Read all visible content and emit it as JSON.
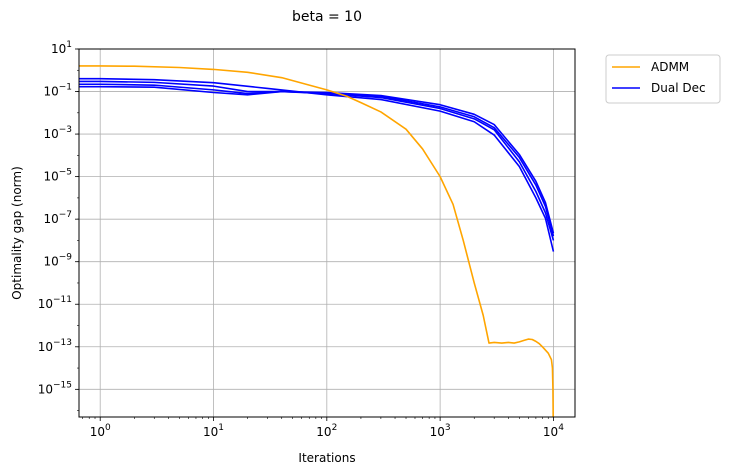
{
  "chart_data": {
    "type": "line",
    "title": "beta = 10",
    "xlabel": "Iterations",
    "ylabel": "Optimality gap (norm)",
    "xscale": "log",
    "yscale": "log",
    "xlim": [
      0.65,
      15500
    ],
    "ylim": [
      5e-17,
      10
    ],
    "grid": true,
    "legend_position": "outside-top-right",
    "x_ticks": [
      {
        "value": 1,
        "base": "10",
        "exp": "0"
      },
      {
        "value": 10,
        "base": "10",
        "exp": "1"
      },
      {
        "value": 100,
        "base": "10",
        "exp": "2"
      },
      {
        "value": 1000,
        "base": "10",
        "exp": "3"
      },
      {
        "value": 10000,
        "base": "10",
        "exp": "4"
      }
    ],
    "y_ticks": [
      {
        "value": 10,
        "base": "10",
        "exp": "1"
      },
      {
        "value": 0.1,
        "base": "10",
        "exp": "−1"
      },
      {
        "value": 0.001,
        "base": "10",
        "exp": "−3"
      },
      {
        "value": 1e-05,
        "base": "10",
        "exp": "−5"
      },
      {
        "value": 1e-07,
        "base": "10",
        "exp": "−7"
      },
      {
        "value": 1e-09,
        "base": "10",
        "exp": "−9"
      },
      {
        "value": 1e-11,
        "base": "10",
        "exp": "−11"
      },
      {
        "value": 1e-13,
        "base": "10",
        "exp": "−13"
      },
      {
        "value": 1e-15,
        "base": "10",
        "exp": "−15"
      }
    ],
    "series": [
      {
        "name": "ADMM",
        "color": "#ffa500",
        "legend": true,
        "points": [
          [
            0.65,
            1.6
          ],
          [
            1,
            1.6
          ],
          [
            2,
            1.55
          ],
          [
            5,
            1.35
          ],
          [
            10,
            1.1
          ],
          [
            20,
            0.8
          ],
          [
            40,
            0.45
          ],
          [
            70,
            0.2
          ],
          [
            100,
            0.12
          ],
          [
            150,
            0.06
          ],
          [
            200,
            0.03
          ],
          [
            300,
            0.011
          ],
          [
            500,
            0.0017
          ],
          [
            700,
            0.0002
          ],
          [
            1000,
            1e-05
          ],
          [
            1300,
            5e-07
          ],
          [
            1600,
            1e-08
          ],
          [
            2000,
            1e-10
          ],
          [
            2400,
            3e-12
          ],
          [
            2700,
            1.5e-13
          ],
          [
            3000,
            1.6e-13
          ],
          [
            3500,
            1.5e-13
          ],
          [
            4000,
            1.6e-13
          ],
          [
            4500,
            1.5e-13
          ],
          [
            5000,
            1.7e-13
          ],
          [
            5500,
            2e-13
          ],
          [
            6000,
            2.3e-13
          ],
          [
            6500,
            2.2e-13
          ],
          [
            7000,
            1.8e-13
          ],
          [
            7500,
            1.4e-13
          ],
          [
            8000,
            1e-13
          ],
          [
            9000,
            5e-14
          ],
          [
            9600,
            2.5e-14
          ],
          [
            9800,
            1e-14
          ],
          [
            9900,
            1e-15
          ],
          [
            9950,
            5e-17
          ]
        ]
      },
      {
        "name": "Dual Dec",
        "color": "#0000ff",
        "legend": true,
        "points": [
          [
            0.65,
            0.4
          ],
          [
            1,
            0.4
          ],
          [
            3,
            0.36
          ],
          [
            10,
            0.26
          ],
          [
            30,
            0.14
          ],
          [
            100,
            0.07
          ],
          [
            300,
            0.042
          ],
          [
            1000,
            0.012
          ],
          [
            2000,
            0.0038
          ],
          [
            3000,
            0.0009
          ],
          [
            5000,
            3e-05
          ],
          [
            7000,
            1e-06
          ],
          [
            8500,
            1.1e-07
          ],
          [
            10000,
            3e-09
          ]
        ]
      },
      {
        "name": "Dual Dec",
        "color": "#0000ff",
        "legend": false,
        "points": [
          [
            0.65,
            0.3
          ],
          [
            1,
            0.3
          ],
          [
            3,
            0.27
          ],
          [
            10,
            0.18
          ],
          [
            20,
            0.1
          ],
          [
            40,
            0.1
          ],
          [
            100,
            0.08
          ],
          [
            300,
            0.052
          ],
          [
            1000,
            0.016
          ],
          [
            2000,
            0.0052
          ],
          [
            3000,
            0.0016
          ],
          [
            5000,
            5e-05
          ],
          [
            7000,
            2e-06
          ],
          [
            8500,
            2e-07
          ],
          [
            10000,
            1e-08
          ]
        ]
      },
      {
        "name": "Dual Dec",
        "color": "#0000ff",
        "legend": false,
        "points": [
          [
            0.65,
            0.22
          ],
          [
            1,
            0.22
          ],
          [
            3,
            0.2
          ],
          [
            10,
            0.12
          ],
          [
            20,
            0.08
          ],
          [
            40,
            0.1
          ],
          [
            100,
            0.085
          ],
          [
            300,
            0.06
          ],
          [
            1000,
            0.019
          ],
          [
            2000,
            0.0065
          ],
          [
            3000,
            0.002
          ],
          [
            5000,
            8e-05
          ],
          [
            7000,
            4e-06
          ],
          [
            8500,
            4e-07
          ],
          [
            10000,
            1.6e-08
          ]
        ]
      },
      {
        "name": "Dual Dec",
        "color": "#0000ff",
        "legend": false,
        "points": [
          [
            0.65,
            0.17
          ],
          [
            1,
            0.17
          ],
          [
            3,
            0.16
          ],
          [
            10,
            0.09
          ],
          [
            20,
            0.07
          ],
          [
            40,
            0.1
          ],
          [
            100,
            0.09
          ],
          [
            300,
            0.065
          ],
          [
            1000,
            0.024
          ],
          [
            2000,
            0.0085
          ],
          [
            3000,
            0.0028
          ],
          [
            5000,
            0.00011
          ],
          [
            7000,
            6e-06
          ],
          [
            8500,
            6e-07
          ],
          [
            10000,
            2.2e-08
          ]
        ]
      }
    ]
  }
}
